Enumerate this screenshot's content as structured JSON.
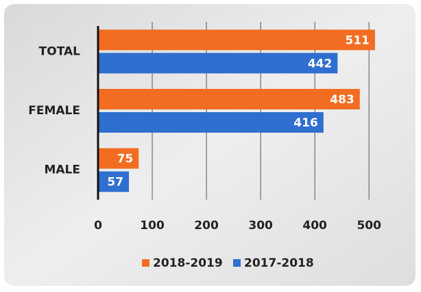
{
  "chart_data": {
    "type": "barh",
    "categories": [
      "TOTAL",
      "FEMALE",
      "MALE"
    ],
    "series": [
      {
        "name": "2018-2019",
        "color": "#f26d21",
        "values": [
          511,
          483,
          75
        ]
      },
      {
        "name": "2017-2018",
        "color": "#2f6fd0",
        "values": [
          442,
          416,
          57
        ]
      }
    ],
    "xlim": [
      0,
      520
    ],
    "xticks": [
      0,
      100,
      200,
      300,
      400,
      500
    ],
    "grid": true,
    "legend": "bottom"
  }
}
